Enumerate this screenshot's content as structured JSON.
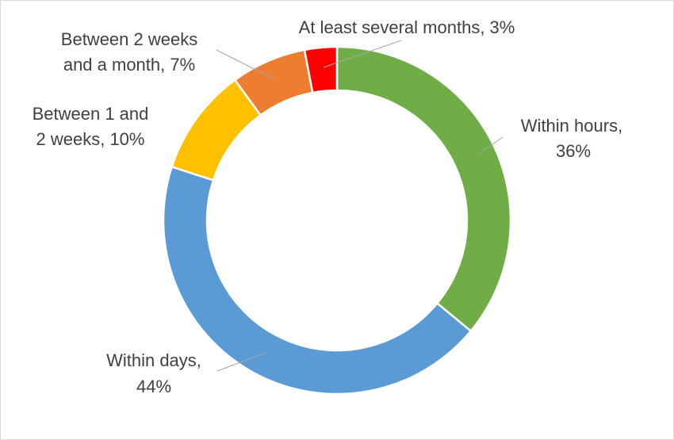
{
  "chart_data": {
    "type": "pie",
    "variant": "donut",
    "title": "",
    "series": [
      {
        "values": [
          36,
          44,
          10,
          7,
          3
        ],
        "categories": [
          "Within hours",
          "Within days",
          "Between 1 and 2 weeks",
          "Between 2 weeks and a month",
          "At least several months"
        ],
        "colors": [
          "#70ad47",
          "#5b9bd5",
          "#ffc000",
          "#ed7d31",
          "#ff0000"
        ]
      }
    ],
    "data_labels": [
      {
        "line1": "Within hours,",
        "line2": "36%"
      },
      {
        "line1": "Within days,",
        "line2": "44%"
      },
      {
        "line1": "Between 1 and",
        "line2": "2 weeks, 10%"
      },
      {
        "line1": "Between 2 weeks",
        "line2": "and a month, 7%"
      },
      {
        "line1": "At least several months, 3%",
        "line2": ""
      }
    ],
    "legend": "none",
    "start_angle": "12 o'clock, clockwise"
  }
}
